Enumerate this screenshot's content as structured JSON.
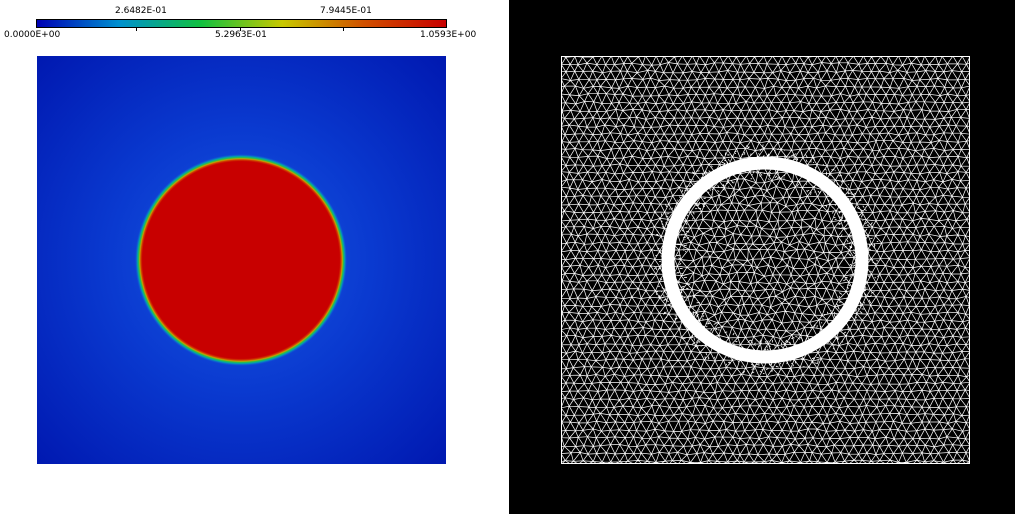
{
  "colorbar": {
    "labels_top": [
      "2.6482E-01",
      "7.9445E-01"
    ],
    "labels_bottom": [
      "0.0000E+00",
      "5.2963E-01",
      "1.0593E+00"
    ],
    "min": 0.0,
    "max": 1.0593,
    "colors": [
      "#0000b4",
      "#0090d0",
      "#10c040",
      "#c8c800",
      "#d05000",
      "#c80000"
    ]
  },
  "field": {
    "inside_value_color": "#c80000",
    "outside_color": "#0a2ec8",
    "outer_edge_color": "#0020b8"
  },
  "mesh": {
    "line_color": "#ffffff",
    "background": "#000000"
  }
}
